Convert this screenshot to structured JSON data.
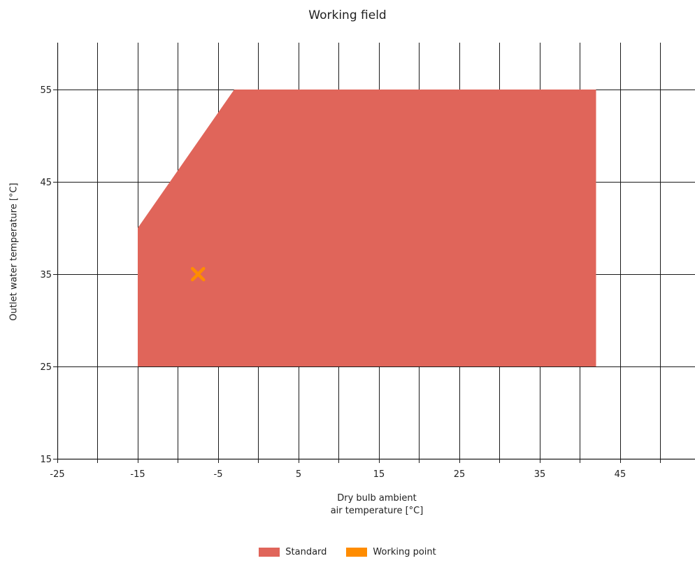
{
  "chart_data": {
    "type": "area",
    "title": "Working field",
    "xlabel_lines": [
      "Dry bulb ambient",
      "air temperature [°C]"
    ],
    "ylabel": "Outlet water temperature [°C]",
    "xlim": [
      -25,
      50
    ],
    "ylim": [
      15,
      60
    ],
    "x_ticks": [
      -25,
      -15,
      -5,
      5,
      15,
      25,
      35,
      45
    ],
    "x_tick_labels": [
      "-25",
      "-15",
      "-5",
      "5",
      "15",
      "25",
      "35",
      "45"
    ],
    "x_grid_step": 5,
    "y_ticks": [
      15,
      25,
      35,
      45,
      55
    ],
    "y_tick_labels": [
      "15",
      "25",
      "35",
      "45",
      "55"
    ],
    "grid": true,
    "legend_position": "bottom-center",
    "series": [
      {
        "name": "Standard",
        "kind": "polygon",
        "color": "#e0655a",
        "points": [
          [
            -15,
            25
          ],
          [
            -15,
            40
          ],
          [
            -3,
            55
          ],
          [
            42,
            55
          ],
          [
            42,
            25
          ]
        ]
      },
      {
        "name": "Working point",
        "kind": "marker",
        "marker": "x",
        "color": "#ff8c00",
        "points": [
          [
            -7.5,
            35
          ]
        ]
      }
    ]
  }
}
